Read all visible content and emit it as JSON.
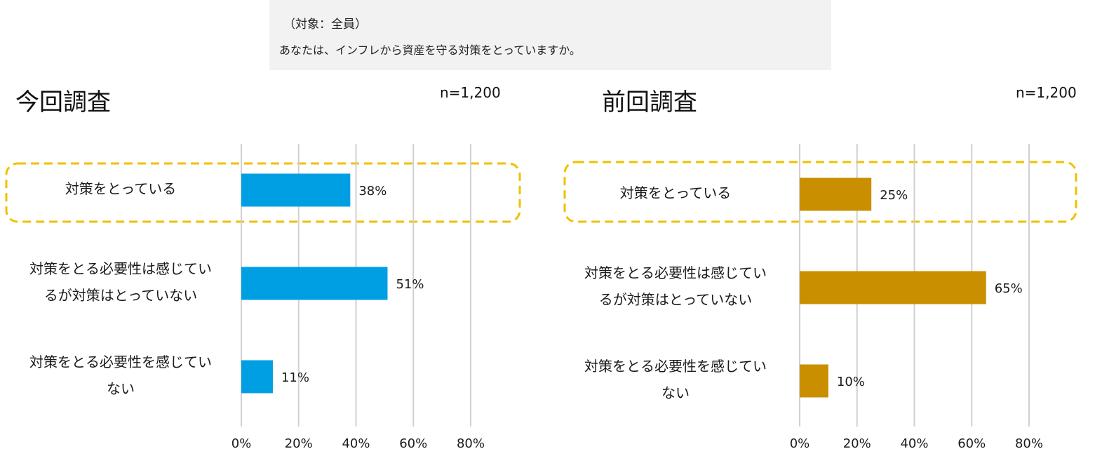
{
  "question": {
    "target": "（対象：全員）",
    "text": "あなたは、インフレから資産を守る対策をとっていますか。"
  },
  "colors": {
    "current": "#009fe3",
    "previous": "#c98f00",
    "highlight": "#f0c000",
    "grid": "#d0d0d0",
    "question_bg": "#f2f2f2"
  },
  "chart_data": [
    {
      "type": "bar",
      "orientation": "horizontal",
      "title": "今回調査",
      "sample_size": "n=1,200",
      "categories": [
        [
          "対策をとっている"
        ],
        [
          "対策をとる必要性は感じてい",
          "るが対策はとっていない"
        ],
        [
          "対策をとる必要性を感じてい",
          "ない"
        ]
      ],
      "values": [
        38,
        51,
        11
      ],
      "value_labels": [
        "38%",
        "51%",
        "11%"
      ],
      "xlim": [
        0,
        80
      ],
      "xticks": [
        "0%",
        "20%",
        "40%",
        "60%",
        "80%"
      ],
      "highlighted_category": 0,
      "grid": true,
      "color": "#009fe3"
    },
    {
      "type": "bar",
      "orientation": "horizontal",
      "title": "前回調査",
      "sample_size": "n=1,200",
      "categories": [
        [
          "対策をとっている"
        ],
        [
          "対策をとる必要性は感じてい",
          "るが対策はとっていない"
        ],
        [
          "対策をとる必要性を感じてい",
          "ない"
        ]
      ],
      "values": [
        25,
        65,
        10
      ],
      "value_labels": [
        "25%",
        "65%",
        "10%"
      ],
      "xlim": [
        0,
        80
      ],
      "xticks": [
        "0%",
        "20%",
        "40%",
        "60%",
        "80%"
      ],
      "highlighted_category": 0,
      "grid": true,
      "color": "#c98f00"
    }
  ]
}
